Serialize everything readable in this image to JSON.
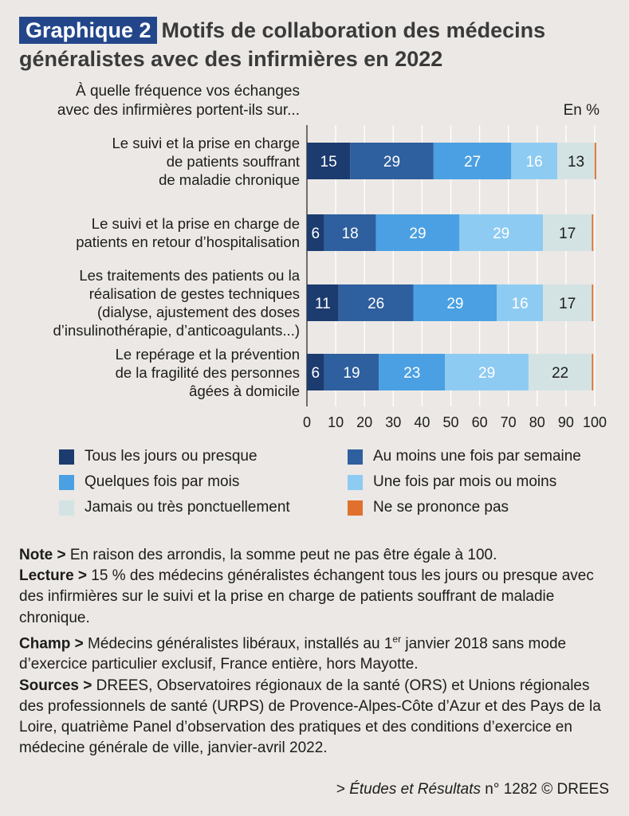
{
  "header": {
    "badge": "Graphique 2",
    "title_line1": "Motifs de collaboration des médecins",
    "title_line2": "généralistes avec des infirmières en 2022"
  },
  "question": {
    "line1": "À quelle fréquence vos échanges",
    "line2": "avec des infirmières portent-ils sur..."
  },
  "unit": "En %",
  "chart_data": {
    "type": "bar",
    "orientation": "horizontal",
    "stacked": true,
    "title": "Motifs de collaboration des médecins généralistes avec des infirmières en 2022",
    "xlabel": "",
    "ylabel": "",
    "xlim": [
      0,
      100
    ],
    "xticks": [
      0,
      10,
      20,
      30,
      40,
      50,
      60,
      70,
      80,
      90,
      100
    ],
    "grid": true,
    "legend_position": "bottom",
    "categories": [
      [
        "Le suivi et la prise en charge",
        "de patients souffrant",
        "de maladie chronique"
      ],
      [
        "Le suivi et la prise en charge de",
        "patients en retour d’hospitalisation"
      ],
      [
        "Les traitements des patients ou la",
        "réalisation de gestes techniques",
        "(dialyse, ajustement des doses",
        "d’insulinothérapie, d’anticoagulants...)"
      ],
      [
        "Le repérage et la prévention",
        "de la fragilité des personnes",
        "âgées à domicile"
      ]
    ],
    "series": [
      {
        "name": "Tous les jours ou presque",
        "color": "#1c3b6e",
        "values": [
          15,
          6,
          11,
          6
        ]
      },
      {
        "name": "Au moins une fois par semaine",
        "color": "#2e5f9e",
        "values": [
          29,
          18,
          26,
          19
        ]
      },
      {
        "name": "Quelques fois par mois",
        "color": "#4aa0e2",
        "values": [
          27,
          29,
          29,
          23
        ]
      },
      {
        "name": "Une fois par mois ou moins",
        "color": "#8ecbf2",
        "values": [
          16,
          29,
          16,
          29
        ]
      },
      {
        "name": "Jamais ou très ponctuellement",
        "color": "#d3e3e3",
        "values": [
          13,
          17,
          17,
          22
        ]
      },
      {
        "name": "Ne se prononce pas",
        "color": "#e0702e",
        "values": [
          0.5,
          0.5,
          0.5,
          0.5
        ]
      }
    ],
    "label_colors": [
      "#ffffff",
      "#ffffff",
      "#ffffff",
      "#ffffff",
      "#1d1d1b",
      ""
    ]
  },
  "notes": {
    "note_label": "Note >",
    "note_text": " En raison des arrondis, la somme peut ne pas être égale à 100.",
    "lecture_label": "Lecture >",
    "lecture_text": " 15 % des médecins généralistes échangent tous les jours ou presque avec des infirmières sur le suivi et la prise en charge de patients souffrant de maladie chronique.",
    "champ_label": "Champ >",
    "champ_text_a": " Médecins généralistes libéraux, installés au 1",
    "champ_sup": "er",
    "champ_text_b": " janvier 2018 sans mode d’exercice particulier exclusif, France entière, hors Mayotte.",
    "sources_label": "Sources >",
    "sources_text": " DREES, Observatoires régionaux de la santé (ORS) et Unions régionales des professionnels de santé (URPS) de Provence-Alpes-Côte d’Azur et des Pays de la Loire, quatrième Panel d’observation des pratiques et des conditions d’exercice en médecine générale de ville, janvier-avril 2022."
  },
  "source": {
    "prefix": "> ",
    "publication": "Études et Résultats",
    "suffix": " n° 1282 © DREES"
  }
}
